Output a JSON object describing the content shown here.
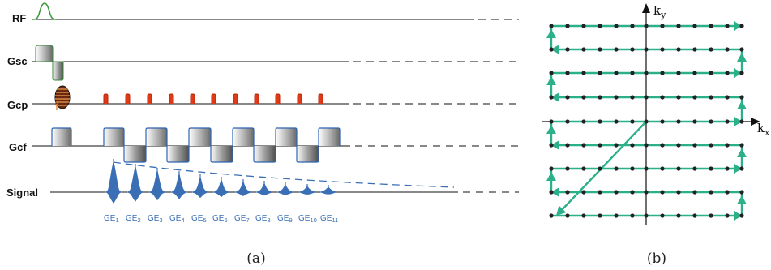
{
  "panel_a": {
    "caption": "(a)",
    "rows": {
      "rf": "RF",
      "gsc": "Gsc",
      "gcp": "Gcp",
      "gcf": "Gcf",
      "signal": "Signal"
    },
    "echo_labels": [
      "GE1",
      "GE2",
      "GE3",
      "GE4",
      "GE5",
      "GE6",
      "GE7",
      "GE8",
      "GE9",
      "GE10",
      "GE11"
    ],
    "colors": {
      "signal": "#3a6fb5",
      "rf": "#3f9a3f",
      "spoiler": "#cc2a12",
      "gradient_fill": "#9a9a9a"
    }
  },
  "panel_b": {
    "caption": "(b)",
    "axis_x": "k",
    "axis_x_sub": "x",
    "axis_y": "k",
    "axis_y_sub": "y",
    "colors": {
      "trajectory": "#2bb08a",
      "point": "#222222"
    }
  }
}
